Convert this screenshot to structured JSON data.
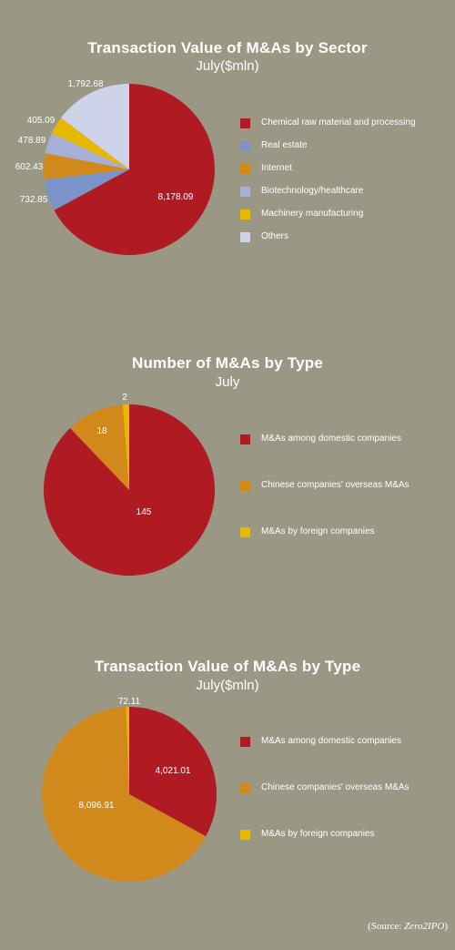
{
  "chart_data": [
    {
      "type": "pie",
      "title": "Transaction Value of M&As by Sector",
      "subtitle": "July($mln)",
      "start_category": "Others",
      "slices": [
        {
          "label": "Chemical raw material and processing",
          "value": 8178.09,
          "display": "8,178.09",
          "color": "#b01a22"
        },
        {
          "label": "Real estate",
          "value": 732.85,
          "display": "732.85",
          "color": "#7b93c9"
        },
        {
          "label": "Internet",
          "value": 602.43,
          "display": "602.43",
          "color": "#d2891b"
        },
        {
          "label": "Biotechnology/healthcare",
          "value": 478.89,
          "display": "478.89",
          "color": "#a6b0d6"
        },
        {
          "label": "Machinery manufacturing",
          "value": 405.09,
          "display": "405.09",
          "color": "#e6b800"
        },
        {
          "label": "Others",
          "value": 1792.68,
          "display": "1,792.68",
          "color": "#cdd3e8"
        }
      ],
      "legend_position": "right"
    },
    {
      "type": "pie",
      "title": "Number of M&As by Type",
      "subtitle": "July",
      "start_category": "M&As by foreign companies",
      "slices": [
        {
          "label": "M&As among domestic companies",
          "value": 145,
          "display": "145",
          "color": "#b01a22"
        },
        {
          "label": "Chinese companies' overseas M&As",
          "value": 18,
          "display": "18",
          "color": "#d2891b"
        },
        {
          "label": "M&As by foreign companies",
          "value": 2,
          "display": "2",
          "color": "#e6b800"
        }
      ],
      "legend_position": "right"
    },
    {
      "type": "pie",
      "title": "Transaction Value of M&As by Type",
      "subtitle": "July($mln)",
      "start_category": "M&As among domestic companies",
      "slices": [
        {
          "label": "M&As among domestic companies",
          "value": 4021.01,
          "display": "4,021.01",
          "color": "#b01a22"
        },
        {
          "label": "Chinese companies' overseas M&As",
          "value": 8096.91,
          "display": "8,096.91",
          "color": "#d2891b"
        },
        {
          "label": "M&As by foreign companies",
          "value": 72.11,
          "display": "72.11",
          "color": "#e6b800"
        }
      ],
      "legend_position": "right"
    }
  ],
  "source": {
    "prefix": "(Source: ",
    "name": "Zero2IPO",
    "suffix": ")"
  }
}
